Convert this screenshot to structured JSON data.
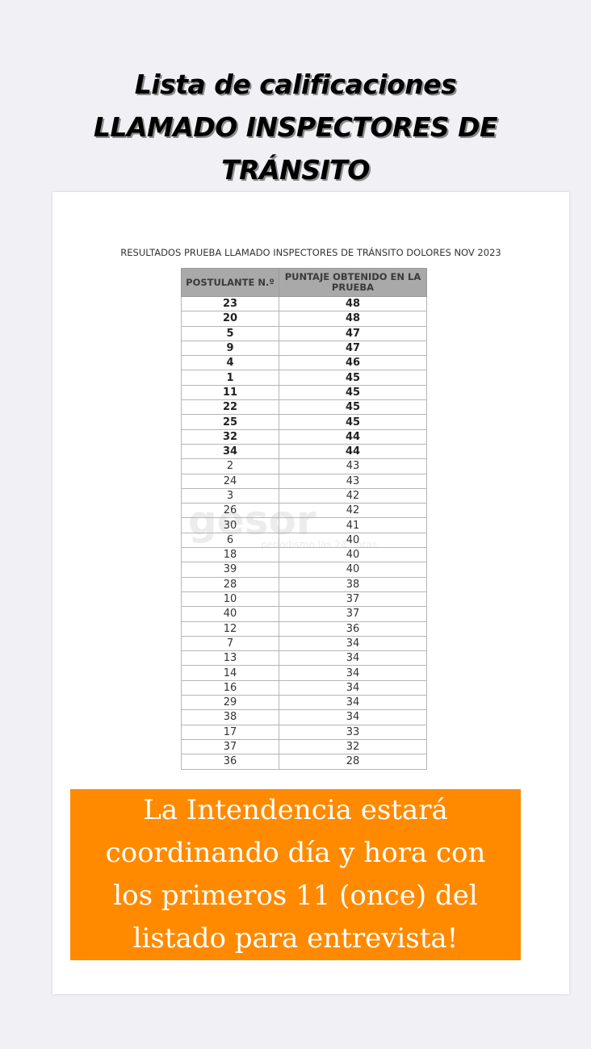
{
  "title": {
    "lines": [
      "Lista de calificaciones",
      "LLAMADO INSPECTORES DE",
      "TRÁNSITO"
    ]
  },
  "document": {
    "heading": "RESULTADOS PRUEBA LLAMADO INSPECTORES DE TRÁNSITO DOLORES NOV 2023",
    "columns": [
      "POSTULANTE N.º",
      "PUNTAJE OBTENIDO EN LA PRUEBA"
    ],
    "rows": [
      [
        "23",
        "48"
      ],
      [
        "20",
        "48"
      ],
      [
        "5",
        "47"
      ],
      [
        "9",
        "47"
      ],
      [
        "4",
        "46"
      ],
      [
        "1",
        "45"
      ],
      [
        "11",
        "45"
      ],
      [
        "22",
        "45"
      ],
      [
        "25",
        "45"
      ],
      [
        "32",
        "44"
      ],
      [
        "34",
        "44"
      ],
      [
        "2",
        "43"
      ],
      [
        "24",
        "43"
      ],
      [
        "3",
        "42"
      ],
      [
        "26",
        "42"
      ],
      [
        "30",
        "41"
      ],
      [
        "6",
        "40"
      ],
      [
        "18",
        "40"
      ],
      [
        "39",
        "40"
      ],
      [
        "28",
        "38"
      ],
      [
        "10",
        "37"
      ],
      [
        "40",
        "37"
      ],
      [
        "12",
        "36"
      ],
      [
        "7",
        "34"
      ],
      [
        "13",
        "34"
      ],
      [
        "14",
        "34"
      ],
      [
        "16",
        "34"
      ],
      [
        "29",
        "34"
      ],
      [
        "38",
        "34"
      ],
      [
        "17",
        "33"
      ],
      [
        "37",
        "32"
      ],
      [
        "36",
        "28"
      ]
    ],
    "watermark": {
      "brand": "gesor",
      "tagline": "periodismo las 24 horas"
    }
  },
  "notice": {
    "lines": [
      "La Intendencia estará",
      "coordinando día y hora con",
      "los primeros 11 (once) del",
      "listado para entrevista!"
    ],
    "background": "#ff8a00"
  }
}
